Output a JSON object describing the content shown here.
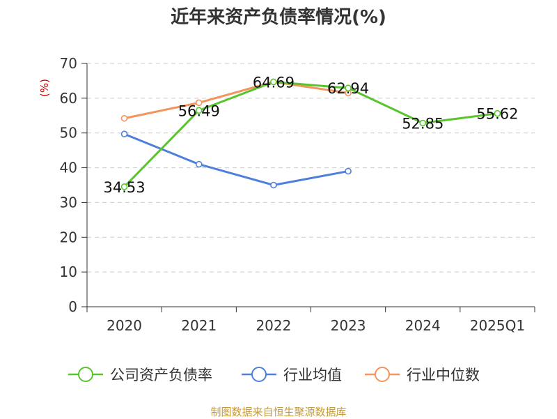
{
  "chart_data": {
    "type": "line",
    "title": "近年来资产负债率情况(%)",
    "ylabel": "(%)",
    "xlabel": "",
    "categories": [
      "2020",
      "2021",
      "2022",
      "2023",
      "2024",
      "2025Q1"
    ],
    "ylim": [
      0,
      70
    ],
    "yticks": [
      0,
      10,
      20,
      30,
      40,
      50,
      60,
      70
    ],
    "grid": true,
    "legend_position": "bottom",
    "series": [
      {
        "name": "公司资产负债率",
        "color": "#5ac42e",
        "values": [
          34.53,
          56.49,
          64.69,
          62.94,
          52.85,
          55.62
        ],
        "labels": [
          "34.53",
          "56.49",
          "64.69",
          "62.94",
          "52.85",
          "55.62"
        ]
      },
      {
        "name": "行业均值",
        "color": "#4e7fdb",
        "values": [
          49.7,
          41.0,
          35.0,
          39.0,
          null,
          null
        ]
      },
      {
        "name": "行业中位数",
        "color": "#f4935a",
        "values": [
          54.2,
          58.7,
          64.7,
          61.5,
          null,
          null
        ]
      }
    ],
    "source": "制图数据来自恒生聚源数据库",
    "colors": {
      "axis": "#333333",
      "grid": "#cccccc",
      "ylabel": "#cc0000",
      "source": "#c49a3a"
    }
  }
}
